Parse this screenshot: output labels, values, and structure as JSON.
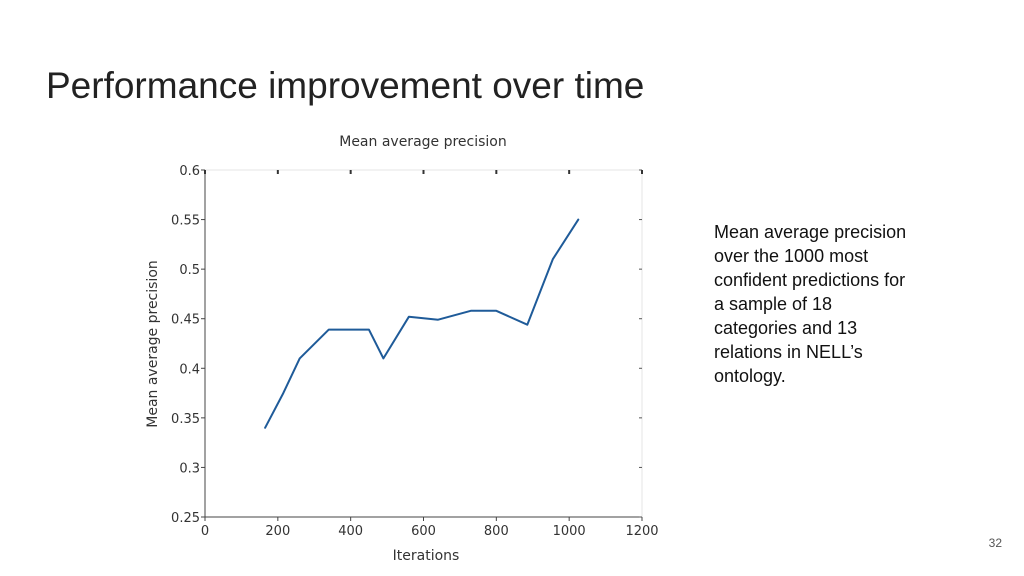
{
  "slide": {
    "title": "Performance improvement over time",
    "caption": "Mean average precision over the 1000 most confident predictions for a sample of 18 categories and 13 relations in NELL’s ontology.",
    "page_number": "32"
  },
  "chart_data": {
    "type": "line",
    "title": "Mean average precision",
    "xlabel": "Iterations",
    "ylabel": "Mean average precision",
    "xlim": [
      0,
      1200
    ],
    "ylim": [
      0.25,
      0.6
    ],
    "xticks": [
      0,
      200,
      400,
      600,
      800,
      1000,
      1200
    ],
    "xtick_labels": [
      "0",
      "200",
      "400",
      "600",
      "800",
      "1000",
      "1200"
    ],
    "yticks": [
      0.25,
      0.3,
      0.35,
      0.4,
      0.45,
      0.5,
      0.55,
      0.6
    ],
    "ytick_labels": [
      "0.25",
      "0.3",
      "0.35",
      "0.4",
      "0.45",
      "0.5",
      "0.55",
      "0.6"
    ],
    "grid": false,
    "line_color": "#1f5b99",
    "series": [
      {
        "x": [
          165,
          215,
          260,
          340,
          450,
          490,
          560,
          640,
          730,
          800,
          885,
          955,
          1025
        ],
        "y": [
          0.34,
          0.375,
          0.41,
          0.439,
          0.439,
          0.41,
          0.452,
          0.449,
          0.458,
          0.458,
          0.444,
          0.51,
          0.55
        ]
      }
    ]
  }
}
